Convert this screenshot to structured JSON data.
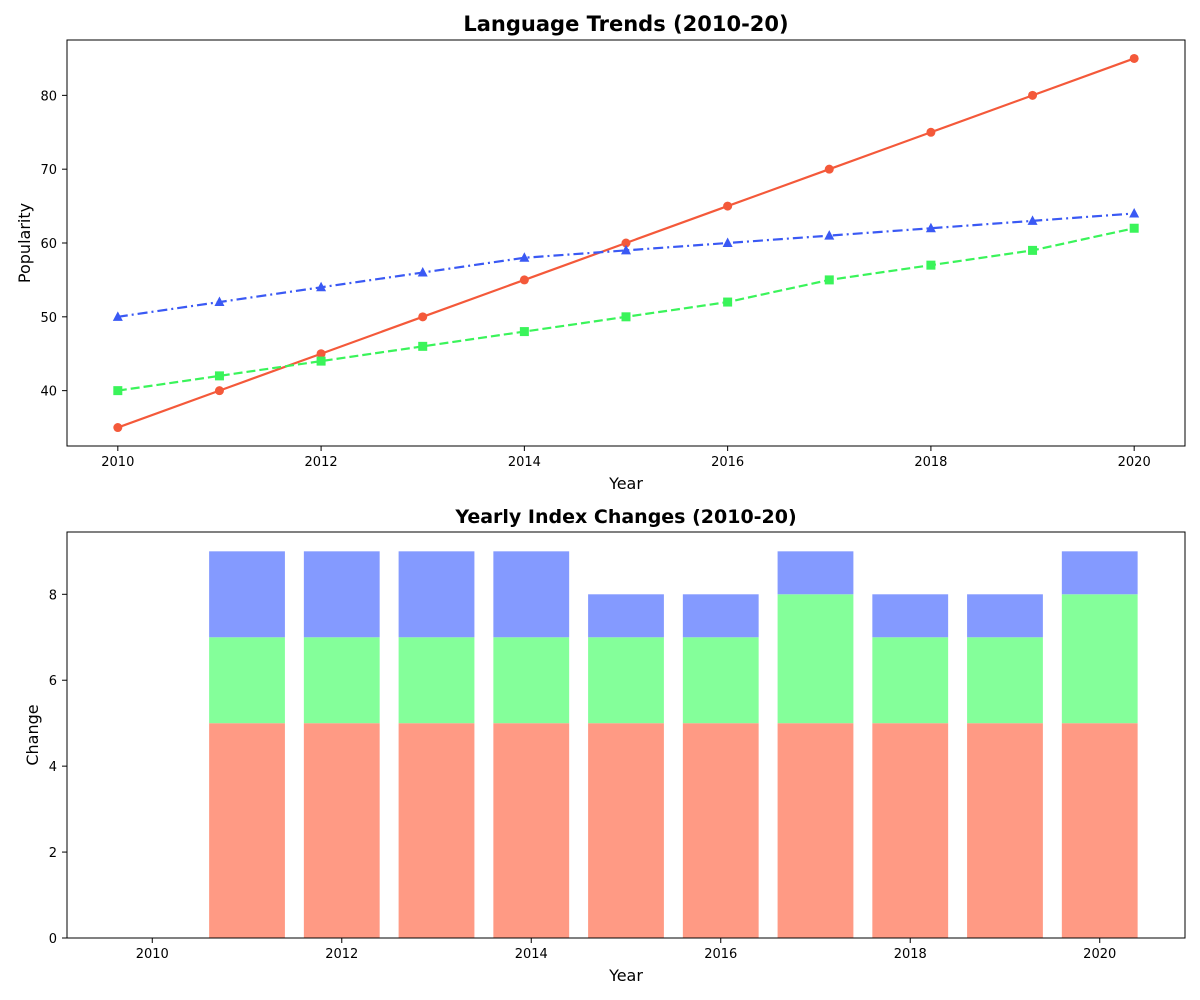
{
  "chart_data": [
    {
      "type": "line",
      "title": "Language Trends (2010-20)",
      "xlabel": "Year",
      "ylabel": "Popularity",
      "x": [
        2010,
        2011,
        2012,
        2013,
        2014,
        2015,
        2016,
        2017,
        2018,
        2019,
        2020
      ],
      "xlim": [
        2009.5,
        2020.5
      ],
      "ylim": [
        32.5,
        87.5
      ],
      "xticks": [
        2010,
        2012,
        2014,
        2016,
        2018,
        2020
      ],
      "yticks": [
        40,
        50,
        60,
        70,
        80
      ],
      "grid": false,
      "legend": "none",
      "series": [
        {
          "values": [
            35,
            40,
            45,
            50,
            55,
            60,
            65,
            70,
            75,
            80,
            85
          ],
          "color": "#F4593A",
          "marker": "circle",
          "linestyle": "solid"
        },
        {
          "values": [
            40,
            42,
            44,
            46,
            48,
            50,
            52,
            55,
            57,
            59,
            62
          ],
          "color": "#3AF45A",
          "marker": "square",
          "linestyle": "dashed"
        },
        {
          "values": [
            50,
            52,
            54,
            56,
            58,
            59,
            60,
            61,
            62,
            63,
            64
          ],
          "color": "#3A59F4",
          "marker": "triangle",
          "linestyle": "dashdot"
        }
      ]
    },
    {
      "type": "bar",
      "stacked": true,
      "title": "Yearly Index Changes (2010-20)",
      "xlabel": "Year",
      "ylabel": "Change",
      "x": [
        2010,
        2011,
        2012,
        2013,
        2014,
        2015,
        2016,
        2017,
        2018,
        2019,
        2020
      ],
      "xlim": [
        2009.1,
        2020.9
      ],
      "ylim": [
        0,
        9.45
      ],
      "xticks": [
        2010,
        2012,
        2014,
        2016,
        2018,
        2020
      ],
      "yticks": [
        0,
        2,
        4,
        6,
        8
      ],
      "grid": false,
      "legend": "none",
      "series": [
        {
          "values": [
            0,
            5,
            5,
            5,
            5,
            5,
            5,
            5,
            5,
            5,
            5
          ],
          "color": "#FF9A84"
        },
        {
          "values": [
            0,
            2,
            2,
            2,
            2,
            2,
            2,
            3,
            2,
            2,
            3
          ],
          "color": "#84FF9A"
        },
        {
          "values": [
            0,
            2,
            2,
            2,
            2,
            1,
            1,
            1,
            1,
            1,
            1
          ],
          "color": "#849AFF"
        }
      ]
    }
  ]
}
